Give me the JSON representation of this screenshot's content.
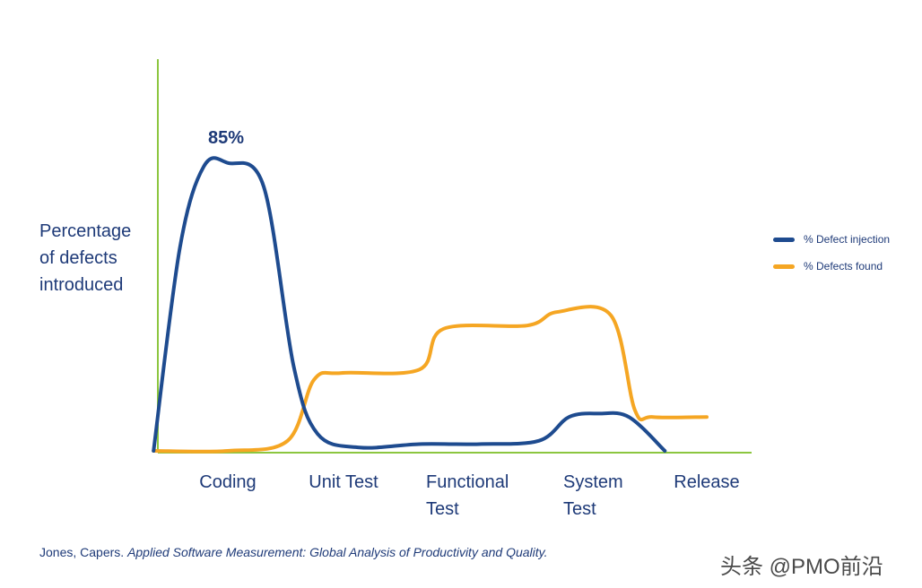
{
  "chart_data": {
    "type": "line",
    "categories": [
      "Coding",
      "Unit Test",
      "Functional\nTest",
      "System\nTest",
      "Release"
    ],
    "ylabel": "Percentage\nof defects\nintroduced",
    "series": [
      {
        "name": "% Defect injection",
        "color": "#1e4b8f",
        "x": [
          -0.62,
          -0.4,
          -0.2,
          0.0,
          0.3,
          0.55,
          0.75,
          1.1,
          1.6,
          2.1,
          2.6,
          2.85,
          3.1,
          3.35,
          3.65
        ],
        "y": [
          0,
          60,
          84,
          85,
          78,
          25,
          5,
          1,
          2,
          2,
          3,
          10,
          11,
          10,
          0
        ]
      },
      {
        "name": "% Defects found",
        "color": "#f5a623",
        "x": [
          -0.62,
          0.0,
          0.5,
          0.72,
          0.95,
          1.6,
          1.8,
          2.5,
          2.75,
          3.2,
          3.4,
          3.55,
          4.0
        ],
        "y": [
          0,
          0,
          3,
          21,
          23,
          24,
          36,
          37,
          41,
          40,
          12,
          10,
          10
        ]
      }
    ],
    "annotations": [
      {
        "text": "85%",
        "x": 0.0,
        "y": 85
      }
    ],
    "ylim": [
      0,
      100
    ],
    "legend_position": "right"
  },
  "source": {
    "authors": "Jones, Capers.",
    "title": "Applied Software Measurement: Global Analysis of Productivity and Quality."
  },
  "watermark": "头条 @PMO前沿"
}
